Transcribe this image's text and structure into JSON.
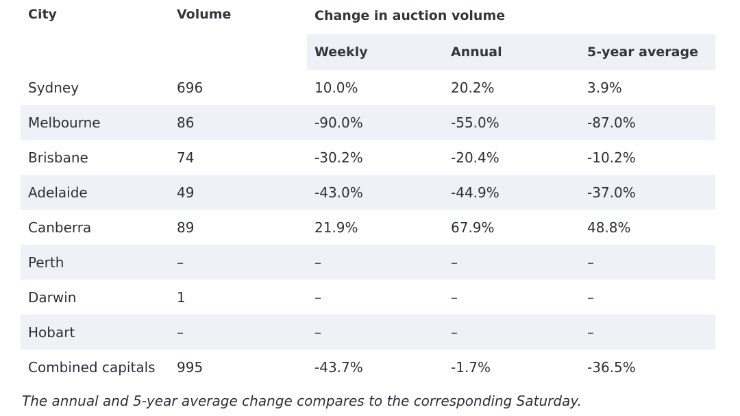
{
  "table": {
    "headers": {
      "city": "City",
      "volume": "Volume",
      "change_group": "Change in auction volume",
      "weekly": "Weekly",
      "annual": "Annual",
      "five_year": "5-year average"
    },
    "rows": [
      {
        "city": "Sydney",
        "volume": "696",
        "weekly": "10.0%",
        "annual": "20.2%",
        "five_year": "3.9%"
      },
      {
        "city": "Melbourne",
        "volume": "86",
        "weekly": "-90.0%",
        "annual": "-55.0%",
        "five_year": "-87.0%"
      },
      {
        "city": "Brisbane",
        "volume": "74",
        "weekly": "-30.2%",
        "annual": "-20.4%",
        "five_year": "-10.2%"
      },
      {
        "city": "Adelaide",
        "volume": "49",
        "weekly": "-43.0%",
        "annual": "-44.9%",
        "five_year": "-37.0%"
      },
      {
        "city": "Canberra",
        "volume": "89",
        "weekly": "21.9%",
        "annual": "67.9%",
        "five_year": "48.8%"
      },
      {
        "city": "Perth",
        "volume": "–",
        "weekly": "–",
        "annual": "–",
        "five_year": "–"
      },
      {
        "city": "Darwin",
        "volume": "1",
        "weekly": "–",
        "annual": "–",
        "five_year": "–"
      },
      {
        "city": "Hobart",
        "volume": "–",
        "weekly": "–",
        "annual": "–",
        "five_year": "–"
      },
      {
        "city": "Combined capitals",
        "volume": "995",
        "weekly": "-43.7%",
        "annual": "-1.7%",
        "five_year": "-36.5%"
      }
    ]
  },
  "caption": "The annual and 5-year average change compares to the corresponding Saturday."
}
